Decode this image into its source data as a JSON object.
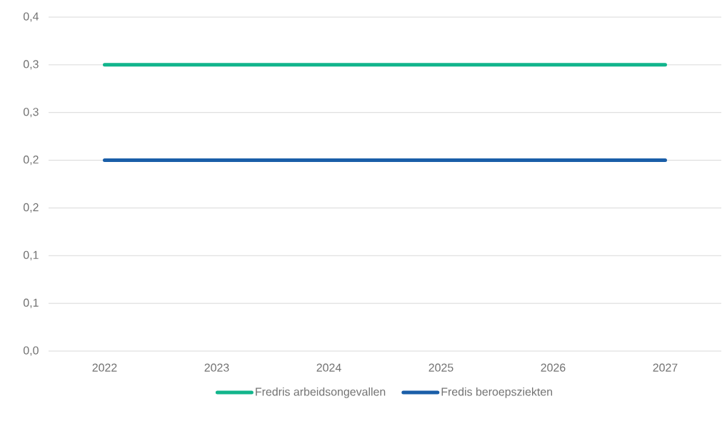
{
  "chart_data": {
    "type": "line",
    "categories": [
      "2022",
      "2023",
      "2024",
      "2025",
      "2026",
      "2027"
    ],
    "series": [
      {
        "name": "Fredris arbeidsongevallen",
        "color": "#12b58c",
        "values": [
          0.3,
          0.3,
          0.3,
          0.3,
          0.3,
          0.3
        ]
      },
      {
        "name": "Fredis beroepsziekten",
        "color": "#1a5ea8",
        "values": [
          0.2,
          0.2,
          0.2,
          0.2,
          0.2,
          0.2
        ]
      }
    ],
    "ylim": [
      0,
      0.35
    ],
    "yticks": [
      {
        "value": 0,
        "label": "0,0"
      },
      {
        "value": 0.05,
        "label": "0,1"
      },
      {
        "value": 0.1,
        "label": "0,1"
      },
      {
        "value": 0.15,
        "label": "0,2"
      },
      {
        "value": 0.2,
        "label": "0,2"
      },
      {
        "value": 0.25,
        "label": "0,3"
      },
      {
        "value": 0.3,
        "label": "0,3"
      },
      {
        "value": 0.35,
        "label": "0,4"
      }
    ],
    "grid": "y",
    "legend": "bottom"
  }
}
